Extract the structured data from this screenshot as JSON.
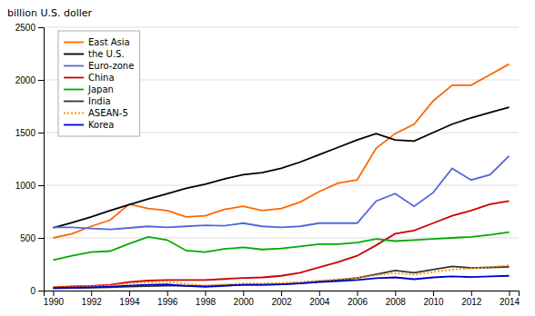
{
  "chart_data": {
    "type": "line",
    "ylabel": "billion U.S. doller",
    "x": [
      1990,
      1991,
      1992,
      1993,
      1994,
      1995,
      1996,
      1997,
      1998,
      1999,
      2000,
      2001,
      2002,
      2003,
      2004,
      2005,
      2006,
      2007,
      2008,
      2009,
      2010,
      2011,
      2012,
      2013,
      2014
    ],
    "series": [
      {
        "name": "East Asia",
        "color": "#FF6600",
        "line_style": "solid",
        "values": [
          500,
          540,
          610,
          670,
          820,
          780,
          760,
          700,
          710,
          770,
          800,
          760,
          780,
          840,
          940,
          1020,
          1050,
          1350,
          1490,
          1580,
          1800,
          1950,
          1950,
          2050,
          2150
        ]
      },
      {
        "name": "the U.S.",
        "color": "#000000",
        "line_style": "solid",
        "values": [
          595,
          645,
          700,
          760,
          815,
          870,
          920,
          970,
          1010,
          1060,
          1100,
          1120,
          1160,
          1220,
          1290,
          1360,
          1430,
          1490,
          1430,
          1420,
          1500,
          1580,
          1640,
          1690,
          1740
        ]
      },
      {
        "name": "Euro-zone",
        "color": "#5566DD",
        "line_style": "solid",
        "values": [
          600,
          600,
          590,
          580,
          595,
          610,
          600,
          610,
          620,
          615,
          640,
          610,
          600,
          610,
          640,
          640,
          640,
          850,
          920,
          800,
          930,
          1160,
          1050,
          1100,
          1280
        ]
      },
      {
        "name": "China",
        "color": "#CC0000",
        "line_style": "solid",
        "values": [
          30,
          40,
          45,
          55,
          80,
          95,
          100,
          100,
          100,
          110,
          120,
          125,
          140,
          170,
          220,
          270,
          330,
          430,
          540,
          570,
          640,
          710,
          760,
          820,
          850
        ]
      },
      {
        "name": "Japan",
        "color": "#00AA00",
        "line_style": "solid",
        "values": [
          290,
          330,
          365,
          375,
          445,
          510,
          480,
          380,
          365,
          395,
          410,
          390,
          400,
          420,
          440,
          440,
          455,
          490,
          470,
          480,
          490,
          500,
          510,
          530,
          555
        ]
      },
      {
        "name": "India",
        "color": "#333333",
        "line_style": "solid",
        "values": [
          20,
          25,
          28,
          32,
          38,
          42,
          46,
          47,
          44,
          50,
          55,
          55,
          60,
          70,
          85,
          100,
          120,
          155,
          190,
          170,
          200,
          230,
          215,
          220,
          225
        ]
      },
      {
        "name": "ASEAN-5",
        "color": "#FF9900",
        "line_style": "dotted",
        "values": [
          30,
          35,
          42,
          50,
          65,
          78,
          85,
          65,
          48,
          58,
          68,
          68,
          72,
          82,
          95,
          108,
          120,
          145,
          165,
          150,
          175,
          200,
          210,
          225,
          240
        ]
      },
      {
        "name": "Korea",
        "color": "#0000CC",
        "line_style": "solid",
        "values": [
          25,
          28,
          32,
          37,
          46,
          55,
          58,
          45,
          35,
          45,
          55,
          55,
          60,
          68,
          82,
          90,
          100,
          118,
          125,
          108,
          125,
          135,
          128,
          135,
          140
        ]
      }
    ],
    "xlim": [
      1989.5,
      2014.5
    ],
    "xticks": [
      1990,
      1992,
      1994,
      1996,
      1998,
      2000,
      2002,
      2004,
      2006,
      2008,
      2010,
      2012,
      2014
    ],
    "ylim": [
      0,
      2500
    ],
    "yticks": [
      0,
      500,
      1000,
      1500,
      2000,
      2500
    ],
    "grid": "y",
    "legend": "upper left"
  }
}
